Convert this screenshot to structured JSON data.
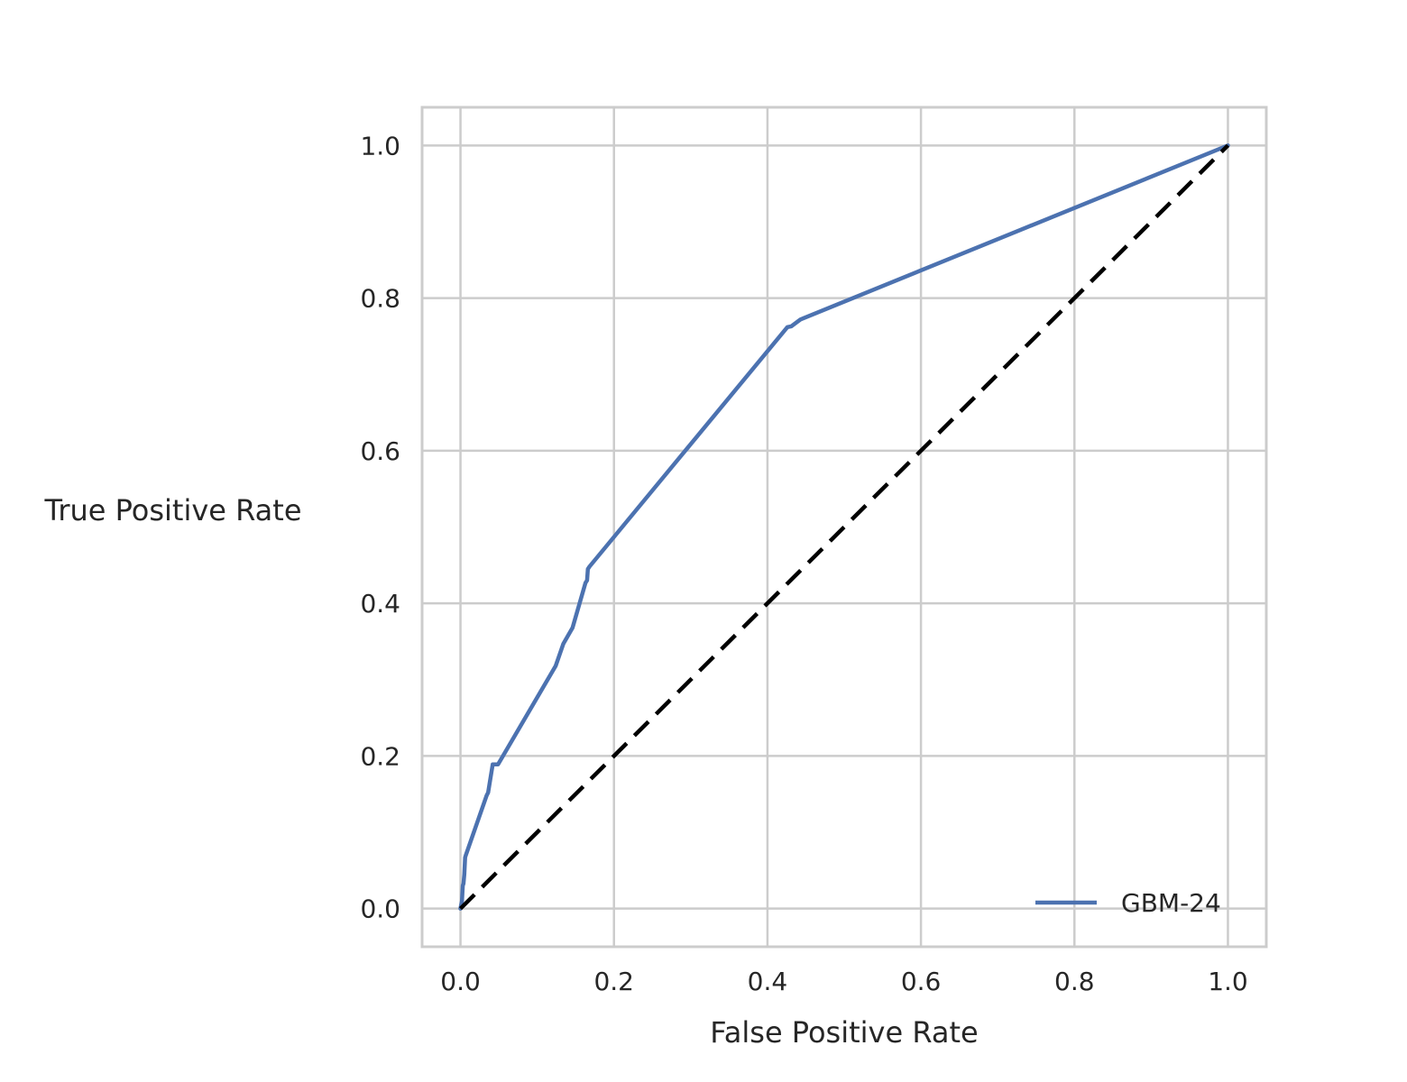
{
  "chart_data": {
    "type": "line",
    "title": "",
    "xlabel": "False Positive Rate",
    "ylabel": "True Positive Rate",
    "xlim": [
      -0.05,
      1.05
    ],
    "ylim": [
      -0.05,
      1.05
    ],
    "xticks": [
      0.0,
      0.2,
      0.4,
      0.6,
      0.8,
      1.0
    ],
    "yticks": [
      0.0,
      0.2,
      0.4,
      0.6,
      0.8,
      1.0
    ],
    "xtick_labels": [
      "0.0",
      "0.2",
      "0.4",
      "0.6",
      "0.8",
      "1.0"
    ],
    "ytick_labels": [
      "0.0",
      "0.2",
      "0.4",
      "0.6",
      "0.8",
      "1.0"
    ],
    "grid": true,
    "legend_position": "lower-right",
    "series": [
      {
        "name": "GBM-24",
        "color": "#4c72b0",
        "style": "solid",
        "x": [
          0.0,
          0.002,
          0.003,
          0.004,
          0.005,
          0.006,
          0.007,
          0.034,
          0.036,
          0.042,
          0.049,
          0.124,
          0.134,
          0.146,
          0.163,
          0.165,
          0.166,
          0.168,
          0.426,
          0.431,
          0.443,
          1.0
        ],
        "y": [
          0.0,
          0.01,
          0.03,
          0.033,
          0.045,
          0.067,
          0.07,
          0.148,
          0.152,
          0.189,
          0.189,
          0.318,
          0.347,
          0.368,
          0.427,
          0.43,
          0.445,
          0.448,
          0.762,
          0.763,
          0.772,
          1.0
        ]
      },
      {
        "name": "",
        "color": "#000000",
        "style": "dashed",
        "x": [
          0.0,
          1.0
        ],
        "y": [
          0.0,
          1.0
        ]
      }
    ]
  }
}
